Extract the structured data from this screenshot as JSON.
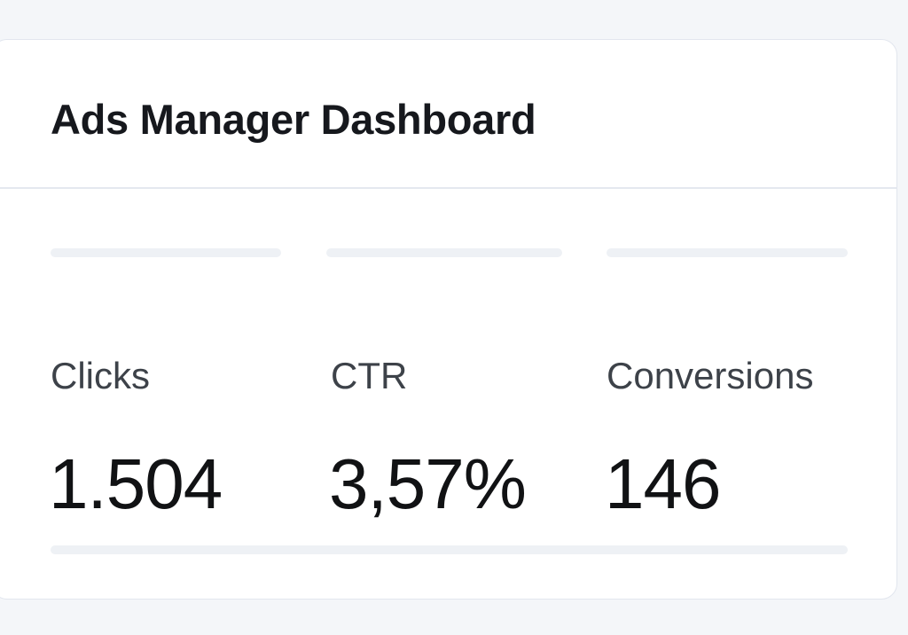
{
  "dashboard": {
    "title": "Ads Manager Dashboard",
    "metrics": [
      {
        "label": "Clicks",
        "value": "1.504"
      },
      {
        "label": "CTR",
        "value": "3,57%"
      },
      {
        "label": "Conversions",
        "value": "146"
      }
    ]
  }
}
